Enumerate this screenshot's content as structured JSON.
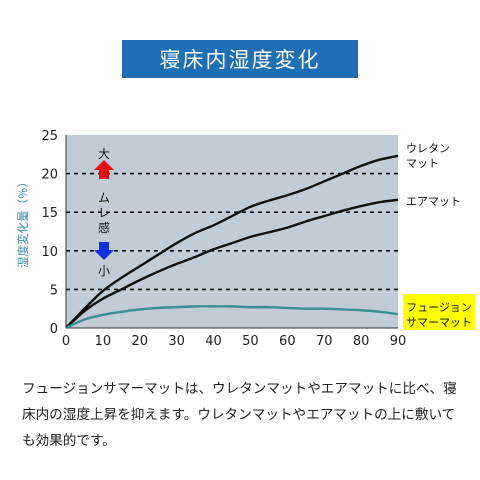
{
  "title": "寝床内湿度変化",
  "description": "フュージョンサマーマットは、ウレタンマットやエアマットに比べ、寝床内の湿度上昇を抑えます。ウレタンマットやエアマットの上に敷いても効果的です。",
  "chart_data": {
    "type": "line",
    "ylabel": "湿度変化量（％）",
    "xlabel": "",
    "xlim": [
      0,
      90
    ],
    "ylim": [
      0,
      25
    ],
    "xticks": [
      0,
      10,
      20,
      30,
      40,
      50,
      60,
      70,
      80,
      90
    ],
    "yticks": [
      0,
      5,
      10,
      15,
      20,
      25
    ],
    "grid": "horizontal dashed",
    "background_color": "#c1ccd6",
    "series": [
      {
        "name": "ウレタンマット",
        "name_lines": [
          "ウレタン",
          "マット"
        ],
        "color": "#111111",
        "x": [
          0,
          5,
          10,
          15,
          20,
          25,
          30,
          35,
          40,
          45,
          50,
          55,
          60,
          65,
          70,
          75,
          80,
          85,
          90
        ],
        "y": [
          0,
          2.5,
          4.8,
          6.5,
          8.0,
          9.5,
          11.0,
          12.3,
          13.3,
          14.5,
          15.7,
          16.5,
          17.2,
          18.0,
          19.0,
          20.0,
          21.0,
          21.8,
          22.3
        ]
      },
      {
        "name": "エアマット",
        "name_lines": [
          "エアマット"
        ],
        "color": "#111111",
        "x": [
          0,
          5,
          10,
          15,
          20,
          25,
          30,
          35,
          40,
          45,
          50,
          55,
          60,
          65,
          70,
          75,
          80,
          85,
          90
        ],
        "y": [
          0,
          2.2,
          3.8,
          5.0,
          6.2,
          7.3,
          8.3,
          9.2,
          10.2,
          11.0,
          11.8,
          12.4,
          13.0,
          13.8,
          14.5,
          15.2,
          15.8,
          16.3,
          16.6
        ]
      },
      {
        "name": "フュージョンサマーマット",
        "name_lines": [
          "フュージョン",
          "サマーマット"
        ],
        "color": "#3a9090",
        "highlight": "#ffff00",
        "x": [
          0,
          5,
          10,
          15,
          20,
          25,
          30,
          35,
          40,
          45,
          50,
          55,
          60,
          65,
          70,
          75,
          80,
          85,
          90
        ],
        "y": [
          0,
          1.1,
          1.7,
          2.1,
          2.4,
          2.6,
          2.7,
          2.8,
          2.8,
          2.8,
          2.7,
          2.7,
          2.6,
          2.5,
          2.5,
          2.4,
          2.3,
          2.1,
          1.8
        ]
      }
    ],
    "annotation": {
      "top": "大",
      "middle": "ムレ感",
      "bottom": "小",
      "up_color": "#e01010",
      "down_color": "#1030e0"
    }
  }
}
